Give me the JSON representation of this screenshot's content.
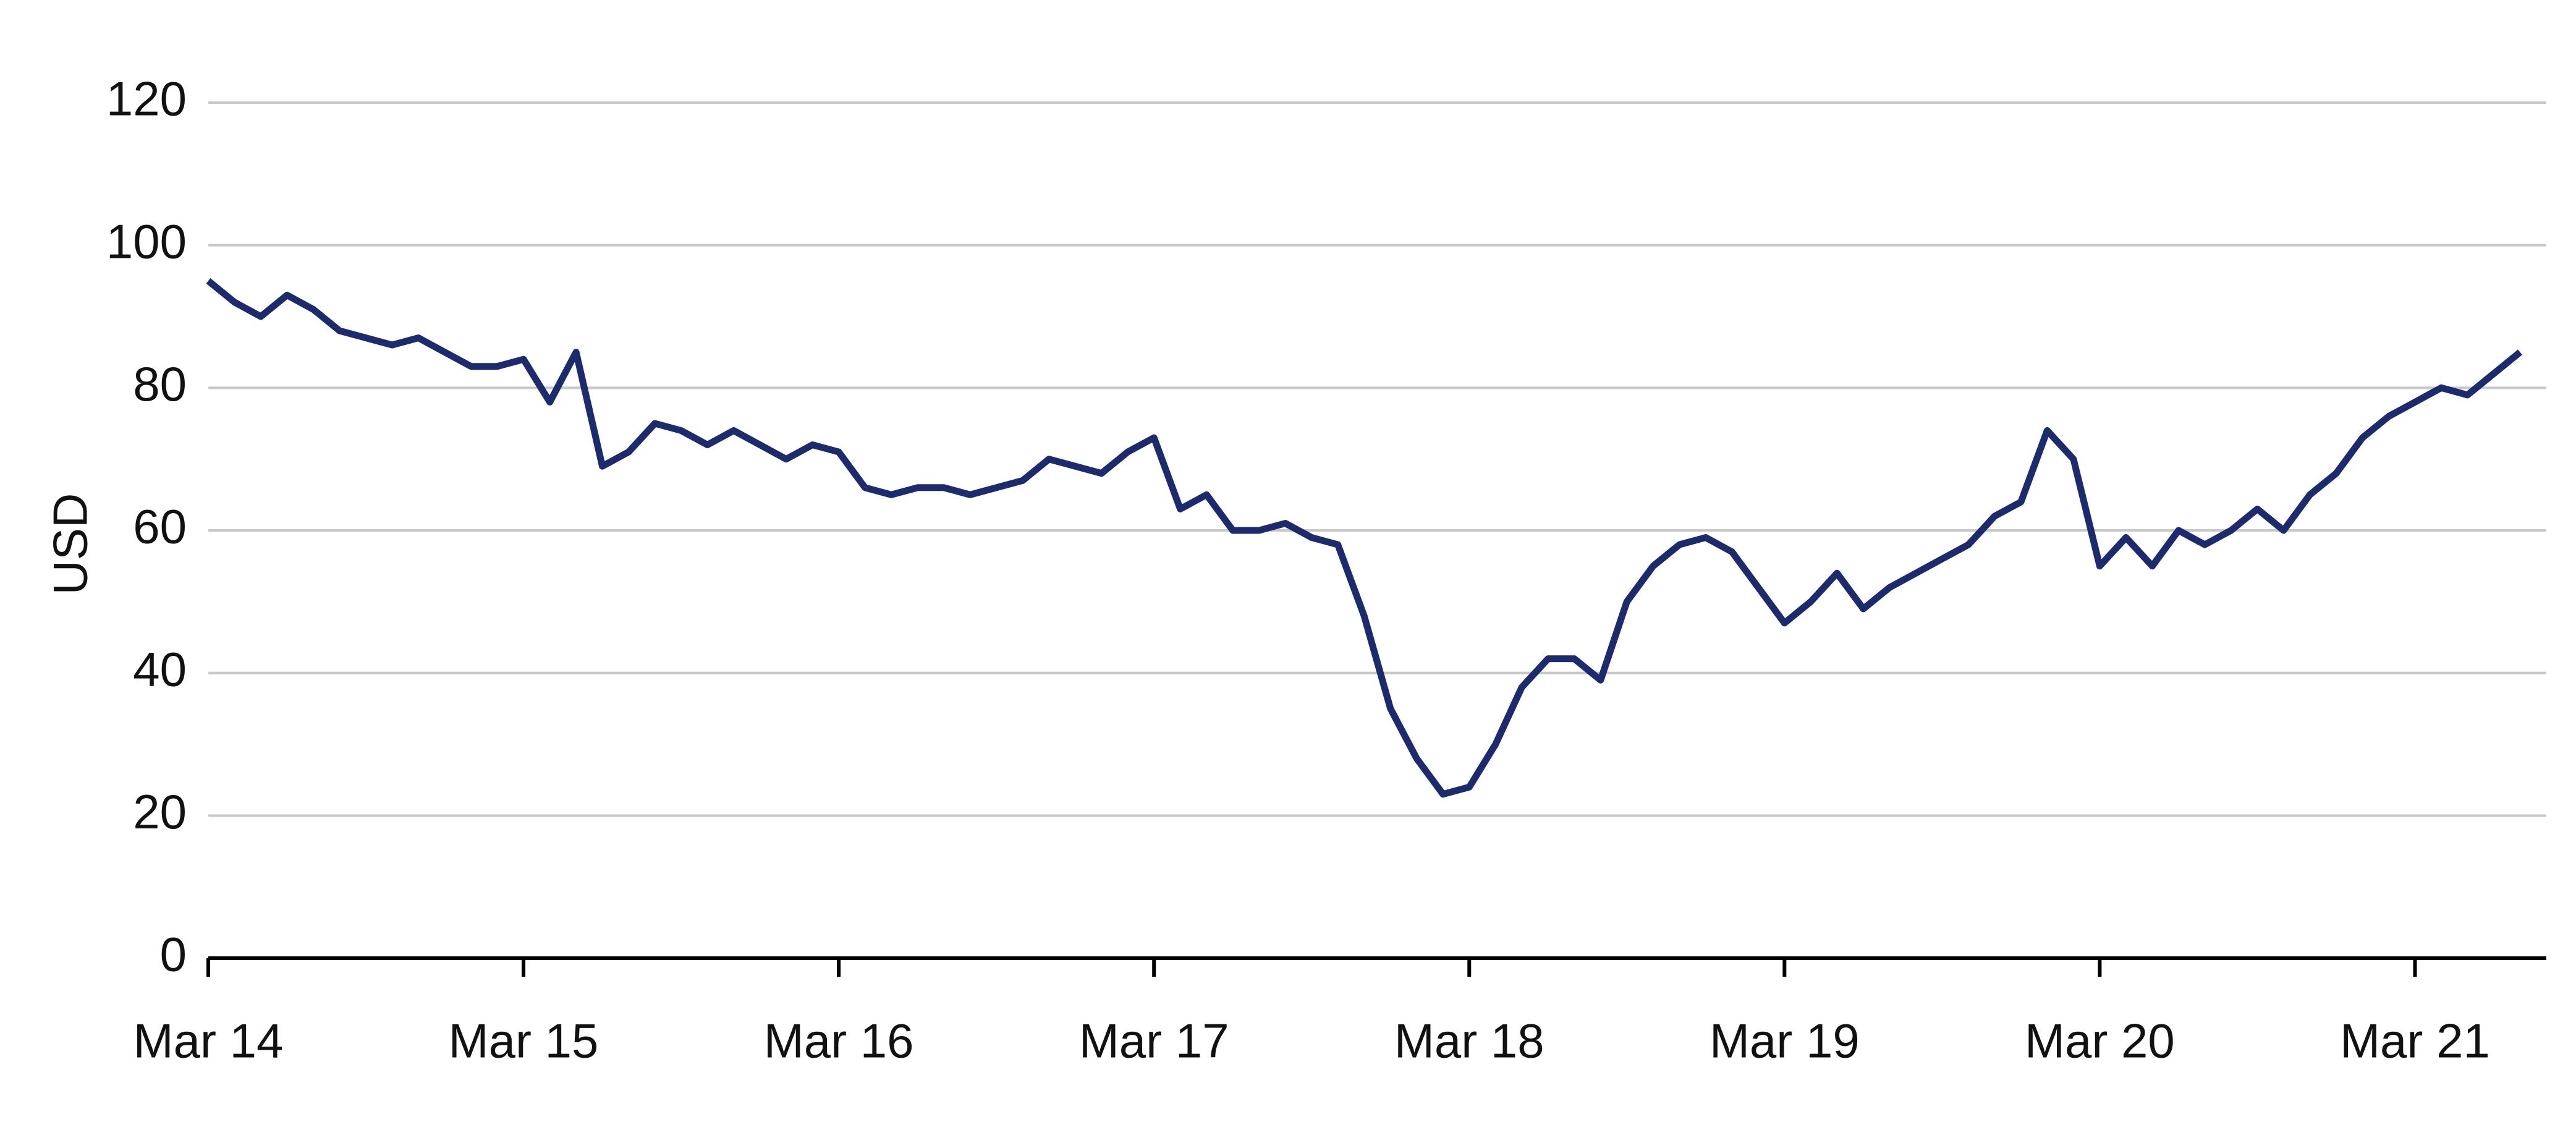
{
  "chart_data": {
    "type": "line",
    "y_label": "USD",
    "color": "#1c2a6e",
    "x": [
      "2014-03",
      "2014-04",
      "2014-05",
      "2014-06",
      "2014-07",
      "2014-08",
      "2014-09",
      "2014-10",
      "2014-11",
      "2014-12",
      "2015-01",
      "2015-02",
      "2015-03",
      "2015-04",
      "2015-05",
      "2015-06",
      "2015-07",
      "2015-08",
      "2015-09",
      "2015-10",
      "2015-11",
      "2015-12",
      "2016-01",
      "2016-02",
      "2016-03",
      "2016-04",
      "2016-05",
      "2016-06",
      "2016-07",
      "2016-08",
      "2016-09",
      "2016-10",
      "2016-11",
      "2016-12",
      "2017-01",
      "2017-02",
      "2017-03",
      "2017-04",
      "2017-05",
      "2017-06",
      "2017-07",
      "2017-08",
      "2017-09",
      "2017-10",
      "2017-11",
      "2017-12",
      "2018-01",
      "2018-02",
      "2018-03",
      "2018-04",
      "2018-05",
      "2018-06",
      "2018-07",
      "2018-08",
      "2018-09",
      "2018-10",
      "2018-11",
      "2018-12",
      "2019-01",
      "2019-02",
      "2019-03",
      "2019-04",
      "2019-05",
      "2019-06",
      "2019-07",
      "2019-08",
      "2019-09",
      "2019-10",
      "2019-11",
      "2019-12",
      "2020-01",
      "2020-02",
      "2020-03",
      "2020-04",
      "2020-05",
      "2020-06",
      "2020-07",
      "2020-08",
      "2020-09",
      "2020-10",
      "2020-11",
      "2020-12",
      "2021-01",
      "2021-02",
      "2021-03",
      "2021-04",
      "2021-05",
      "2021-06",
      "2021-07"
    ],
    "values": [
      95,
      92,
      90,
      93,
      91,
      88,
      87,
      86,
      87,
      85,
      83,
      83,
      84,
      78,
      85,
      69,
      71,
      75,
      74,
      72,
      74,
      72,
      70,
      72,
      71,
      66,
      65,
      66,
      66,
      65,
      66,
      67,
      70,
      69,
      68,
      71,
      73,
      63,
      65,
      60,
      60,
      61,
      59,
      58,
      48,
      35,
      28,
      23,
      24,
      30,
      38,
      42,
      42,
      39,
      50,
      55,
      58,
      59,
      57,
      52,
      47,
      50,
      54,
      49,
      52,
      54,
      56,
      58,
      62,
      64,
      74,
      70,
      55,
      59,
      55,
      60,
      58,
      60,
      63,
      60,
      65,
      68,
      73,
      76,
      78,
      80,
      79,
      82,
      85
    ],
    "xlim": [
      "2014-03",
      "2021-08"
    ],
    "xticks": [
      {
        "value": "2014-03",
        "label": "Mar 14"
      },
      {
        "value": "2015-03",
        "label": "Mar 15"
      },
      {
        "value": "2016-03",
        "label": "Mar 16"
      },
      {
        "value": "2017-03",
        "label": "Mar 17"
      },
      {
        "value": "2018-03",
        "label": "Mar 18"
      },
      {
        "value": "2019-03",
        "label": "Mar 19"
      },
      {
        "value": "2020-03",
        "label": "Mar 20"
      },
      {
        "value": "2021-03",
        "label": "Mar 21"
      }
    ],
    "ylim": [
      0,
      120
    ],
    "yticks": [
      0,
      20,
      40,
      60,
      80,
      100,
      120
    ],
    "grid": true
  }
}
